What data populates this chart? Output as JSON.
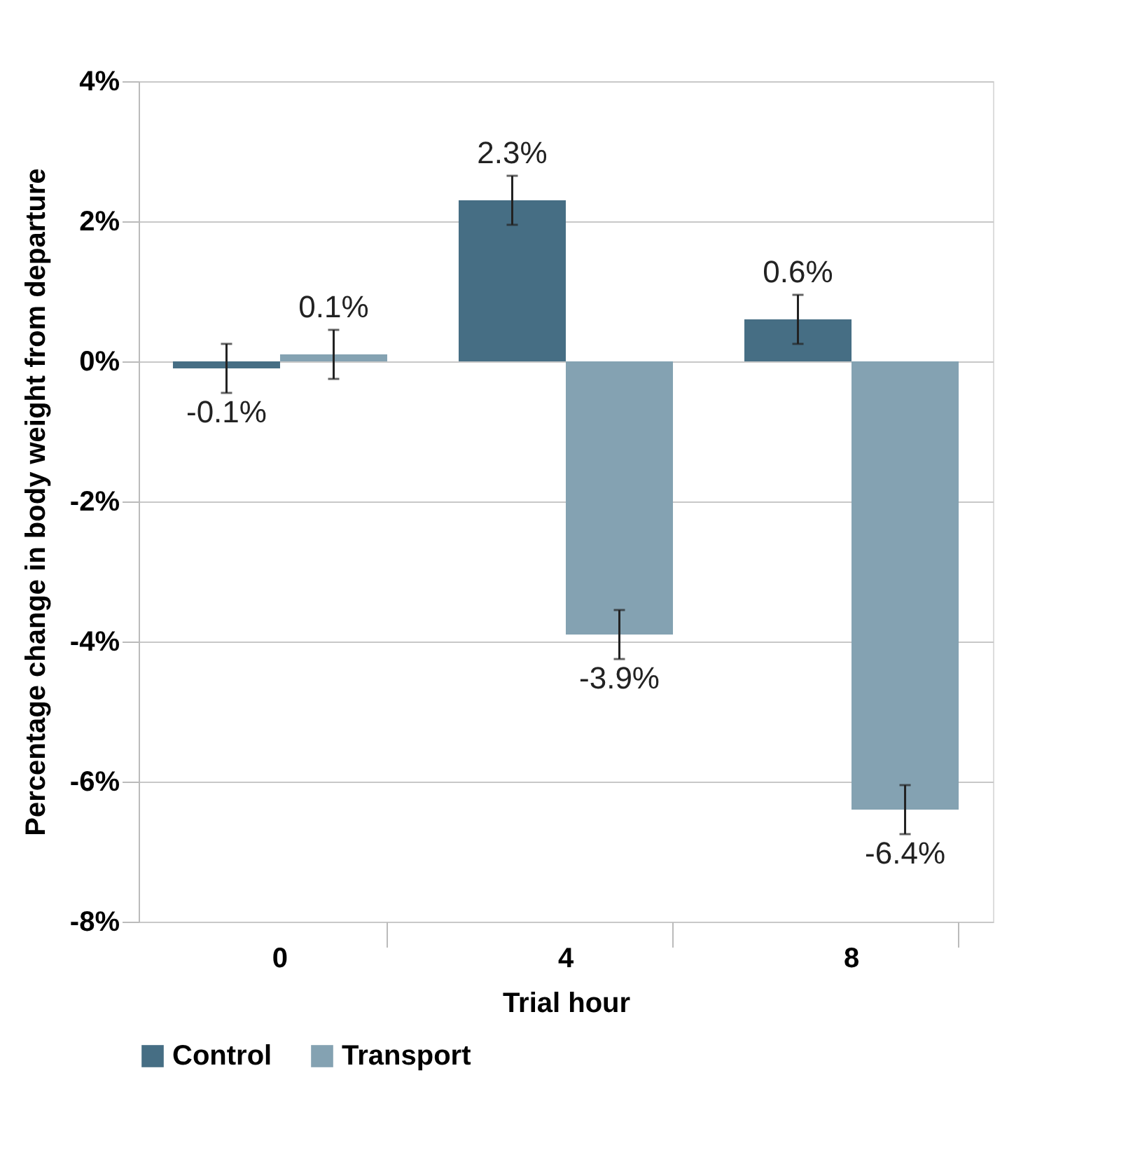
{
  "chart_data": {
    "type": "bar",
    "xlabel": "Trial hour",
    "ylabel": "Percentage change in body weight from departure",
    "categories": [
      "0",
      "4",
      "8"
    ],
    "series": [
      {
        "name": "Control",
        "color": "#466e84",
        "values": [
          -0.1,
          2.3,
          0.6
        ],
        "errors": [
          0.35,
          0.35,
          0.35
        ],
        "value_labels": [
          "-0.1%",
          "2.3%",
          "0.6%"
        ]
      },
      {
        "name": "Transport",
        "color": "#84a2b2",
        "values": [
          0.1,
          -3.9,
          -6.4
        ],
        "errors": [
          0.35,
          0.35,
          0.35
        ],
        "value_labels": [
          "0.1%",
          "-3.9%",
          "-6.4%"
        ]
      }
    ],
    "ylim": [
      -8,
      4
    ],
    "yticks": [
      {
        "value": -8,
        "label": "-8%"
      },
      {
        "value": -6,
        "label": "-6%"
      },
      {
        "value": -4,
        "label": "-4%"
      },
      {
        "value": -2,
        "label": "-2%"
      },
      {
        "value": 0,
        "label": "0%"
      },
      {
        "value": 2,
        "label": "2%"
      },
      {
        "value": 4,
        "label": "4%"
      }
    ],
    "grid": "y",
    "legend": "bottom"
  }
}
